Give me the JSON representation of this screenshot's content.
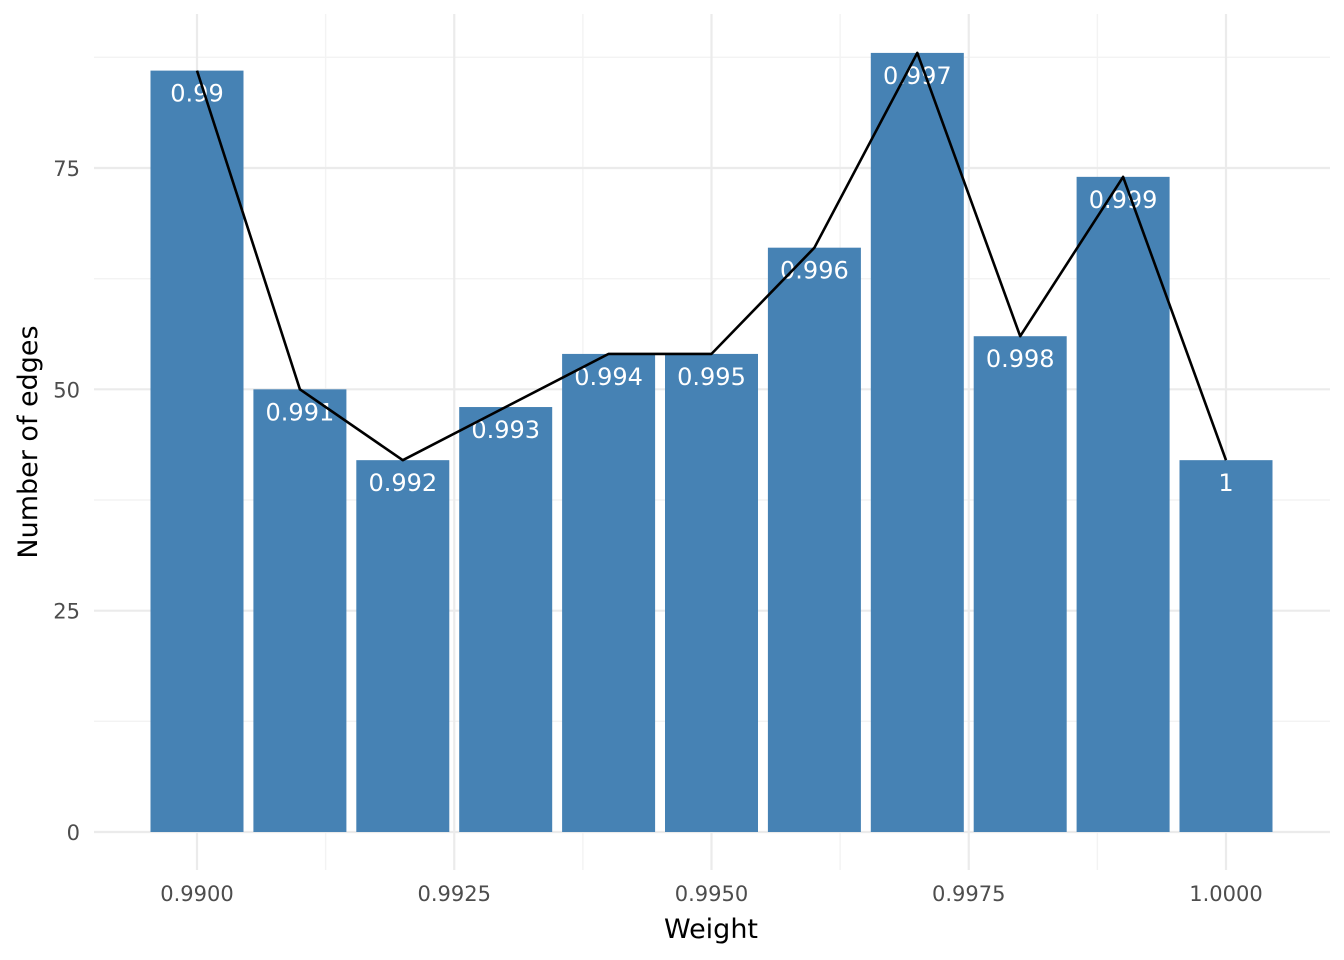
{
  "chart_data": {
    "type": "bar",
    "title": "",
    "xlabel": "Weight",
    "ylabel": "Number of edges",
    "bar_color": "#4682B4",
    "line_color": "#000000",
    "grid": true,
    "legend": "none",
    "xlim": [
      0.9895,
      1.0005
    ],
    "ylim": [
      0,
      90
    ],
    "x_ticks": [
      0.99,
      0.9925,
      0.995,
      0.9975,
      1.0
    ],
    "x_tick_labels": [
      "0.9900",
      "0.9925",
      "0.9950",
      "0.9975",
      "1.0000"
    ],
    "y_ticks": [
      0,
      25,
      50,
      75
    ],
    "y_tick_labels": [
      "0",
      "25",
      "50",
      "75"
    ],
    "x": [
      0.99,
      0.991,
      0.992,
      0.993,
      0.994,
      0.995,
      0.996,
      0.997,
      0.998,
      0.999,
      1.0
    ],
    "values": [
      86,
      50,
      42,
      48,
      54,
      54,
      66,
      88,
      56,
      74,
      42
    ],
    "bar_labels": [
      "0.99",
      "0.991",
      "0.992",
      "0.993",
      "0.994",
      "0.995",
      "0.996",
      "0.997",
      "0.998",
      "0.999",
      "1"
    ],
    "series": [
      {
        "type": "bar",
        "values": [
          86,
          50,
          42,
          48,
          54,
          54,
          66,
          88,
          56,
          74,
          42
        ]
      },
      {
        "type": "line",
        "values": [
          86,
          50,
          42,
          48,
          54,
          54,
          66,
          88,
          56,
          74,
          42
        ]
      }
    ]
  }
}
